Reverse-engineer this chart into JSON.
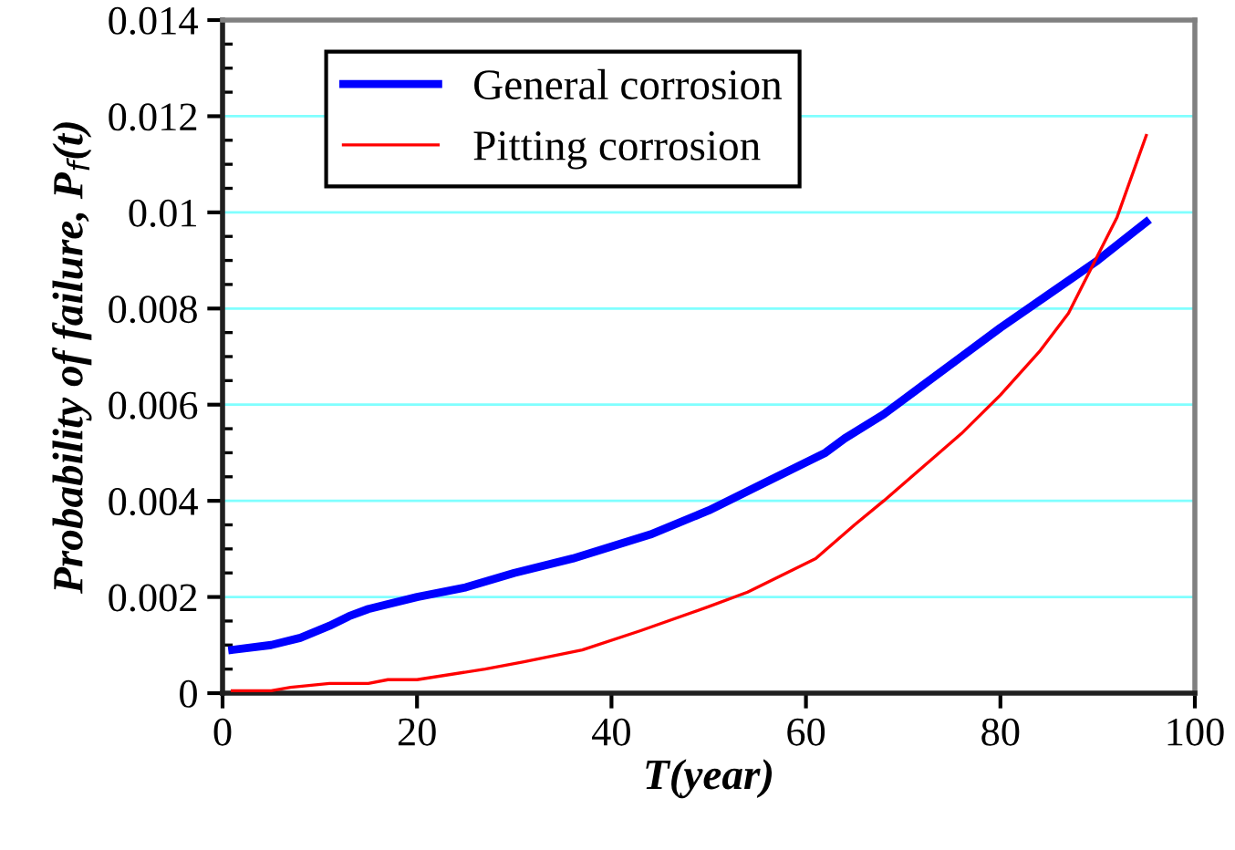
{
  "chart_data": {
    "type": "line",
    "xlabel": "T(year)",
    "ylabel": "Probability of failure, P$_{f}$(t)",
    "xlim": [
      0,
      100
    ],
    "xticks": [
      0,
      20,
      40,
      60,
      80,
      100
    ],
    "ylim": [
      0,
      0.014
    ],
    "yticks": [
      {
        "value": 0,
        "label": "0"
      },
      {
        "value": 0.002,
        "label": "0.002"
      },
      {
        "value": 0.004,
        "label": "0.004"
      },
      {
        "value": 0.006,
        "label": "0.006"
      },
      {
        "value": 0.008,
        "label": "0.008"
      },
      {
        "value": 0.01,
        "label": "0.01"
      },
      {
        "value": 0.012,
        "label": "0.012"
      },
      {
        "value": 0.014,
        "label": "0.014"
      }
    ],
    "grid": "y",
    "legend": "top",
    "marker": "none",
    "series": [
      {
        "name": "General corrosion",
        "color": "#0000ff",
        "line_style": "solid",
        "x": [
          1,
          5,
          8,
          11,
          13,
          15,
          20,
          25,
          30,
          36,
          44,
          50,
          57,
          62,
          64,
          68,
          72,
          76,
          80,
          85,
          90,
          95
        ],
        "values": [
          0.0009,
          0.001,
          0.00115,
          0.0014,
          0.0016,
          0.00175,
          0.002,
          0.0022,
          0.0025,
          0.0028,
          0.0033,
          0.0038,
          0.0045,
          0.005,
          0.0053,
          0.0058,
          0.0064,
          0.007,
          0.0076,
          0.0083,
          0.009,
          0.0098
        ]
      },
      {
        "name": "Pitting corrosion",
        "color": "#ff0000",
        "line_style": "solid",
        "x": [
          1,
          5,
          7,
          11,
          15,
          17,
          20,
          27,
          31,
          37,
          43,
          50,
          54,
          58,
          61,
          65,
          68,
          72,
          76,
          80,
          84,
          87,
          90,
          92,
          95
        ],
        "values": [
          5e-05,
          5e-05,
          0.00012,
          0.0002,
          0.0002,
          0.00028,
          0.00028,
          0.0005,
          0.00065,
          0.0009,
          0.0013,
          0.0018,
          0.0021,
          0.0025,
          0.0028,
          0.0035,
          0.004,
          0.0047,
          0.0054,
          0.0062,
          0.0071,
          0.0079,
          0.0091,
          0.0099,
          0.0116
        ]
      }
    ]
  }
}
